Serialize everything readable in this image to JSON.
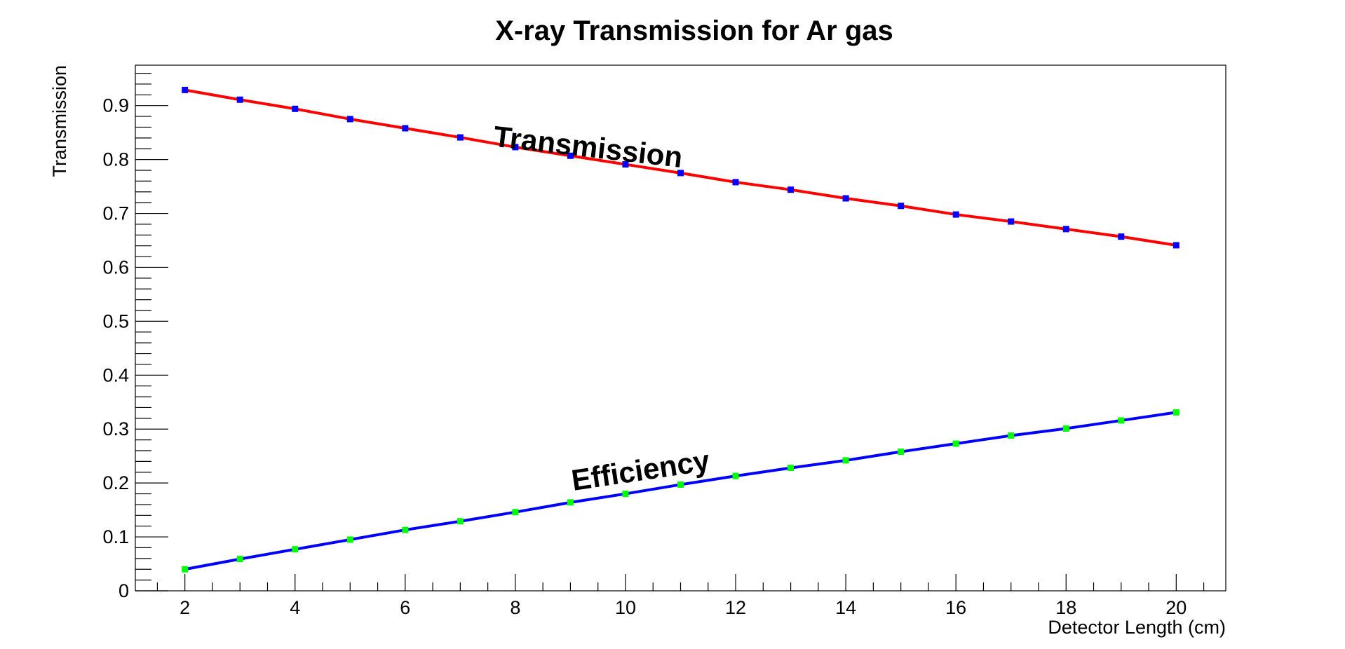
{
  "chart_data": {
    "type": "line",
    "title": "X-ray Transmission for Ar gas",
    "xlabel": "Detector Length (cm)",
    "ylabel": "Transmission",
    "xlim": [
      1.1,
      20.9
    ],
    "ylim": [
      0,
      0.975
    ],
    "x_ticks": [
      2,
      4,
      6,
      8,
      10,
      12,
      14,
      16,
      18,
      20
    ],
    "y_ticks": [
      0,
      0.1,
      0.2,
      0.3,
      0.4,
      0.5,
      0.6,
      0.7,
      0.8,
      0.9
    ],
    "grid": false,
    "x": [
      2,
      3,
      4,
      5,
      6,
      7,
      8,
      9,
      10,
      11,
      12,
      13,
      14,
      15,
      16,
      17,
      18,
      19,
      20
    ],
    "series": [
      {
        "name": "Transmission",
        "line_color": "#ff0000",
        "marker_color": "#0000ff",
        "values": [
          0.929,
          0.911,
          0.894,
          0.875,
          0.858,
          0.841,
          0.823,
          0.807,
          0.791,
          0.775,
          0.758,
          0.744,
          0.728,
          0.714,
          0.698,
          0.685,
          0.671,
          0.657,
          0.641
        ]
      },
      {
        "name": "Efficiency",
        "line_color": "#0000ff",
        "marker_color": "#00ff00",
        "values": [
          0.04,
          0.059,
          0.077,
          0.095,
          0.113,
          0.129,
          0.146,
          0.164,
          0.18,
          0.197,
          0.213,
          0.228,
          0.242,
          0.258,
          0.273,
          0.288,
          0.301,
          0.316,
          0.331
        ]
      }
    ],
    "annotations": [
      {
        "text": "Transmission",
        "x": 9.3,
        "y": 0.805,
        "angle_deg": 6.5
      },
      {
        "text": "Efficiency",
        "x": 10.3,
        "y": 0.205,
        "angle_deg": -8.5
      }
    ]
  }
}
